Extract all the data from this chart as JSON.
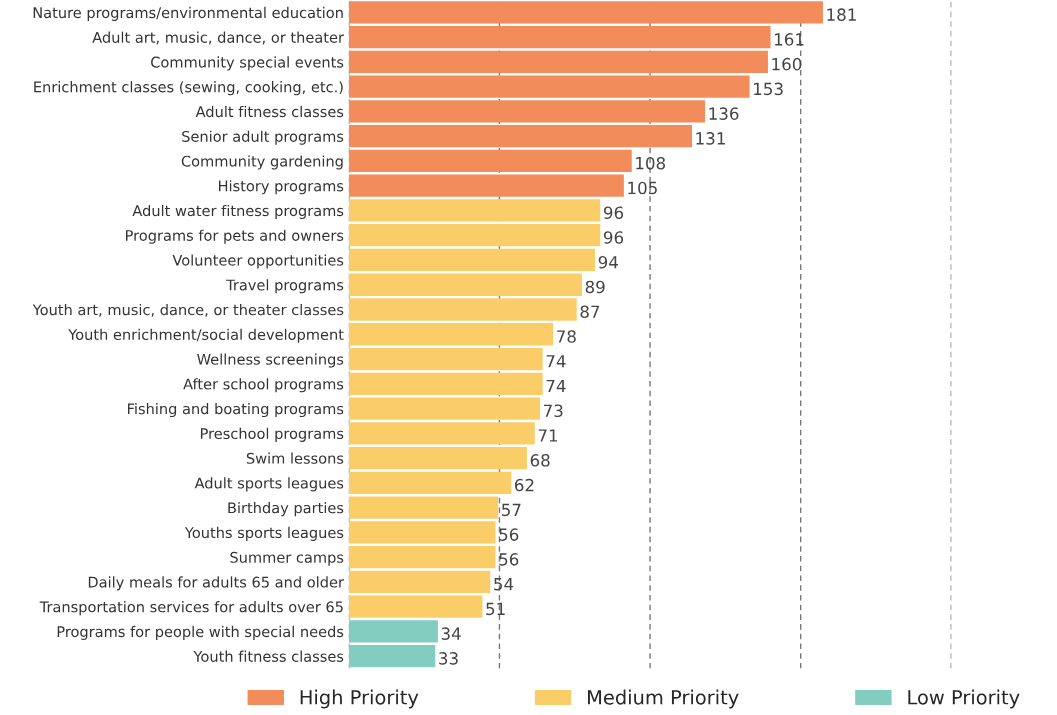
{
  "chart_data": {
    "type": "bar",
    "orientation": "horizontal",
    "categories": [
      "Nature programs/environmental education",
      "Adult art, music, dance, or theater",
      "Community special events",
      "Enrichment classes (sewing, cooking, etc.)",
      "Adult fitness classes",
      "Senior adult programs",
      "Community gardening",
      "History programs",
      "Adult water fitness programs",
      "Programs for pets and owners",
      "Volunteer opportunities",
      "Travel programs",
      "Youth art, music, dance, or theater classes",
      "Youth enrichment/social development",
      "Wellness screenings",
      "After school programs",
      "Fishing and boating programs",
      "Preschool programs",
      "Swim lessons",
      "Adult sports leagues",
      "Birthday parties",
      "Youths sports leagues",
      "Summer camps",
      "Daily meals for adults 65 and older",
      "Transportation services for adults over 65",
      "Programs for people with special needs",
      "Youth fitness classes"
    ],
    "series": [
      {
        "name": "High Priority",
        "color": "#f28c5a",
        "values": [
          181,
          161,
          160,
          153,
          136,
          131,
          108,
          105,
          null,
          null,
          null,
          null,
          null,
          null,
          null,
          null,
          null,
          null,
          null,
          null,
          null,
          null,
          null,
          null,
          null,
          null,
          null
        ]
      },
      {
        "name": "Medium Priority",
        "color": "#fbcd68",
        "values": [
          null,
          null,
          null,
          null,
          null,
          null,
          null,
          null,
          96,
          96,
          94,
          89,
          87,
          78,
          74,
          74,
          73,
          71,
          68,
          62,
          57,
          56,
          56,
          54,
          51,
          null,
          null
        ]
      },
      {
        "name": "Low Priority",
        "color": "#82cdc0",
        "values": [
          null,
          null,
          null,
          null,
          null,
          null,
          null,
          null,
          null,
          null,
          null,
          null,
          null,
          null,
          null,
          null,
          null,
          null,
          null,
          null,
          null,
          null,
          null,
          null,
          null,
          34,
          33
        ]
      }
    ],
    "xlim": [
      0,
      230
    ],
    "xticks": [
      {
        "value": 0,
        "label": null
      },
      {
        "value": 57.5,
        "label": null
      },
      {
        "value": 115,
        "label": null
      },
      {
        "value": 172.5,
        "label": null
      },
      {
        "value": 230,
        "label": null
      }
    ],
    "grid": "x",
    "legend": "bottom",
    "data_labels": true,
    "tick_labels": "y"
  }
}
